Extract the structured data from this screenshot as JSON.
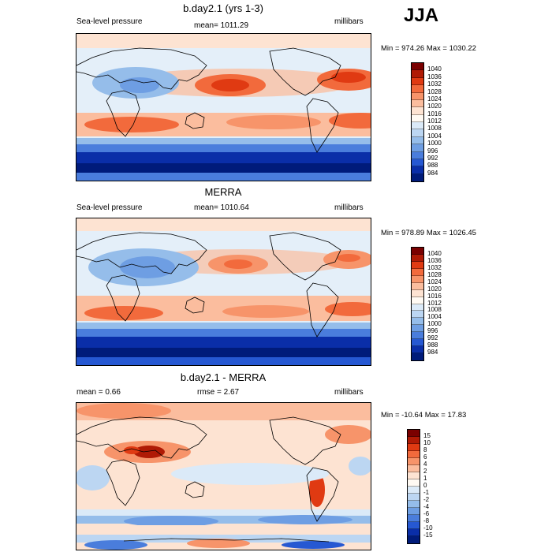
{
  "season": "JJA",
  "panels": [
    {
      "title": "b.day2.1 (yrs 1-3)",
      "left_label": "Sea-level pressure",
      "center_label": "mean= 1011.29",
      "right_label": "millibars",
      "minmax": "Min = 974.26 Max = 1030.22",
      "colorbar": {
        "labels": [
          "1040",
          "1036",
          "1032",
          "1028",
          "1024",
          "1020",
          "1016",
          "1012",
          "1008",
          "1004",
          "1000",
          "996",
          "992",
          "988",
          "984"
        ],
        "colors": [
          "#7a0000",
          "#b01a05",
          "#e03a12",
          "#f26a3c",
          "#f7946a",
          "#fbbd9e",
          "#fde3d2",
          "#fffaf3",
          "#dbeaf8",
          "#bcd6f2",
          "#95bdea",
          "#6e9ee3",
          "#4a7ddc",
          "#2658d2",
          "#0a2ea8",
          "#001b7a"
        ]
      }
    },
    {
      "title": "MERRA",
      "left_label": "Sea-level pressure",
      "center_label": "mean= 1010.64",
      "right_label": "millibars",
      "minmax": "Min = 978.89 Max = 1026.45",
      "colorbar": {
        "labels": [
          "1040",
          "1036",
          "1032",
          "1028",
          "1024",
          "1020",
          "1016",
          "1012",
          "1008",
          "1004",
          "1000",
          "996",
          "992",
          "988",
          "984"
        ],
        "colors": [
          "#7a0000",
          "#b01a05",
          "#e03a12",
          "#f26a3c",
          "#f7946a",
          "#fbbd9e",
          "#fde3d2",
          "#fffaf3",
          "#dbeaf8",
          "#bcd6f2",
          "#95bdea",
          "#6e9ee3",
          "#4a7ddc",
          "#2658d2",
          "#0a2ea8",
          "#001b7a"
        ]
      }
    },
    {
      "title": "b.day2.1 - MERRA",
      "left_label": "mean =   0.66",
      "center_label": "rmse =   2.67",
      "right_label": "millibars",
      "minmax": "Min = -10.64 Max =  17.83",
      "colorbar": {
        "labels": [
          "15",
          "10",
          "8",
          "6",
          "4",
          "2",
          "1",
          "0",
          "-1",
          "-2",
          "-4",
          "-6",
          "-8",
          "-10",
          "-15"
        ],
        "colors": [
          "#7a0000",
          "#b01a05",
          "#e03a12",
          "#f26a3c",
          "#f7946a",
          "#fbbd9e",
          "#fde3d2",
          "#fffaf3",
          "#dbeaf8",
          "#bcd6f2",
          "#95bdea",
          "#6e9ee3",
          "#4a7ddc",
          "#2658d2",
          "#0a2ea8",
          "#001b7a"
        ]
      }
    }
  ]
}
